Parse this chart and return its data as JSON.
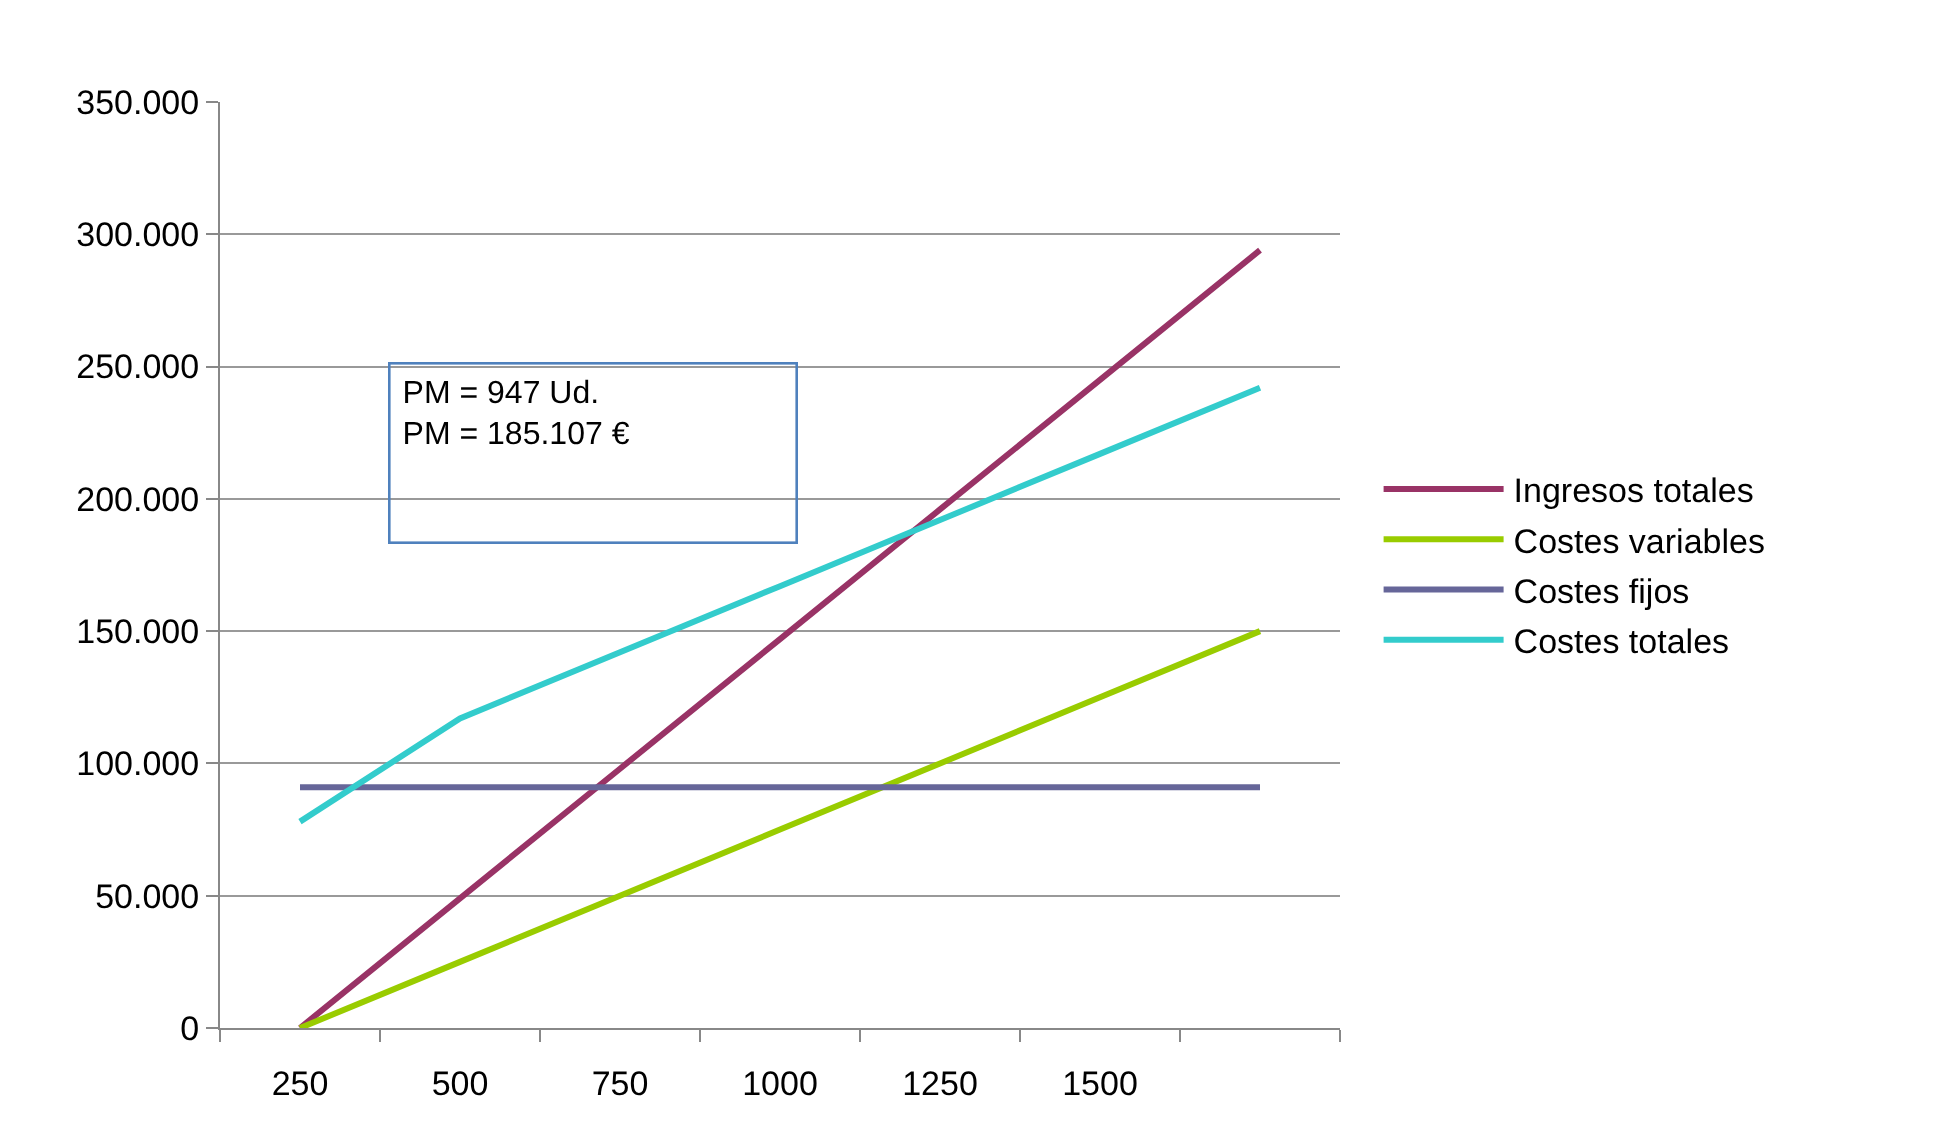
{
  "chart_data": {
    "type": "line",
    "categories": [
      "250",
      "500",
      "750",
      "1000",
      "1250",
      "1500",
      null
    ],
    "series": [
      {
        "name": "Ingresos totales",
        "color": "#993366",
        "values": [
          0,
          49000,
          98000,
          147000,
          196000,
          245000,
          294000
        ]
      },
      {
        "name": "Costes variables",
        "color": "#99cc00",
        "values": [
          0,
          25000,
          50000,
          75000,
          100000,
          125000,
          150000
        ]
      },
      {
        "name": "Costes fijos",
        "color": "#666699",
        "values": [
          91000,
          91000,
          91000,
          91000,
          91000,
          91000,
          91000
        ]
      },
      {
        "name": "Costes totales",
        "color": "#33cccc",
        "values": [
          78000,
          117000,
          142000,
          167000,
          192000,
          217000,
          242000
        ]
      }
    ],
    "ylim": [
      0,
      350000
    ],
    "yticks": [
      {
        "value": 0,
        "label": "0"
      },
      {
        "value": 50000,
        "label": "50.000"
      },
      {
        "value": 100000,
        "label": "100.000"
      },
      {
        "value": 150000,
        "label": "150.000"
      },
      {
        "value": 200000,
        "label": "200.000"
      },
      {
        "value": 250000,
        "label": "250.000"
      },
      {
        "value": 300000,
        "label": "300.000"
      },
      {
        "value": 350000,
        "label": "350.000"
      }
    ],
    "grid": "y",
    "legend": "right",
    "marker": "none",
    "line_style": "solid",
    "annotations": [
      "PM = 947 Ud.\nPM = 185.107 €"
    ]
  }
}
